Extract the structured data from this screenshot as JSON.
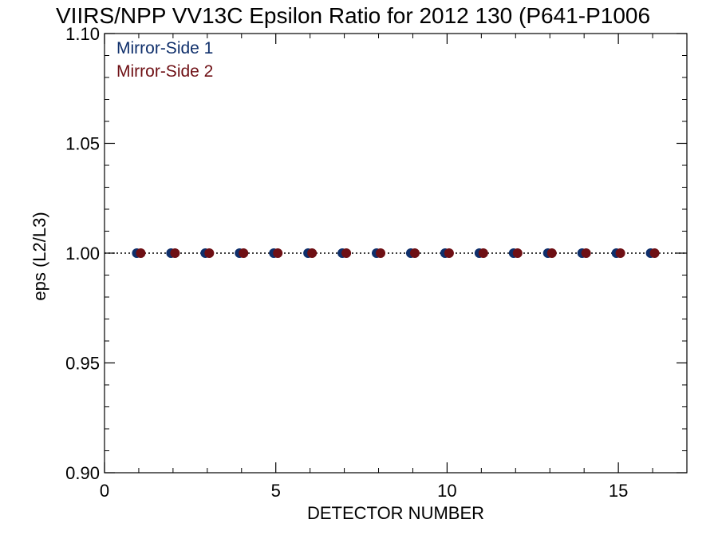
{
  "chart_data": {
    "type": "scatter",
    "title": "VIIRS/NPP VV13C Epsilon Ratio for 2012 130 (P641-P1006",
    "xlabel": "DETECTOR NUMBER",
    "ylabel": "eps (L2/L3)",
    "xlim": [
      0,
      17
    ],
    "ylim": [
      0.9,
      1.1
    ],
    "x_ticks": [
      0,
      5,
      10,
      15
    ],
    "x_tick_labels": [
      "0",
      "5",
      "10",
      "15"
    ],
    "y_ticks": [
      0.9,
      0.95,
      1.0,
      1.05,
      1.1
    ],
    "y_tick_labels": [
      "0.90",
      "0.95",
      "1.00",
      "1.05",
      "1.10"
    ],
    "reference_line": {
      "y": 1.0,
      "style": "dotted"
    },
    "legend_placement": "top-left",
    "series": [
      {
        "name": "Mirror-Side 1",
        "color": "#0f2f6b",
        "x": [
          1,
          2,
          3,
          4,
          5,
          6,
          7,
          8,
          9,
          10,
          11,
          12,
          13,
          14,
          15,
          16
        ],
        "y": [
          1.0,
          1.0,
          1.0,
          1.0,
          1.0,
          1.0,
          1.0,
          1.0,
          1.0,
          1.0,
          1.0,
          1.0,
          1.0,
          1.0,
          1.0,
          1.0
        ]
      },
      {
        "name": "Mirror-Side 2",
        "color": "#6e0f14",
        "x": [
          1,
          2,
          3,
          4,
          5,
          6,
          7,
          8,
          9,
          10,
          11,
          12,
          13,
          14,
          15,
          16
        ],
        "y": [
          1.0,
          1.0,
          1.0,
          1.0,
          1.0,
          1.0,
          1.0,
          1.0,
          1.0,
          1.0,
          1.0,
          1.0,
          1.0,
          1.0,
          1.0,
          1.0
        ]
      }
    ]
  }
}
